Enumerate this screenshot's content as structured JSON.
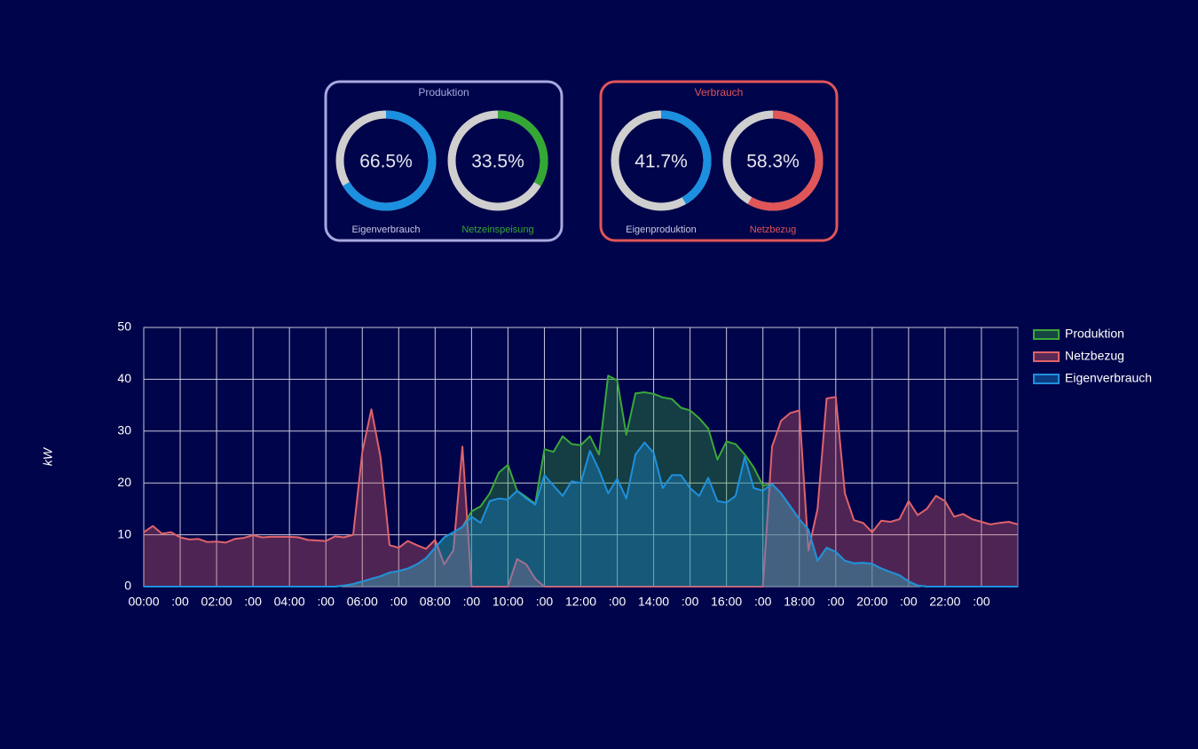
{
  "panels": [
    {
      "title": "Produktion",
      "color": "#a7a9e0",
      "gauges": [
        {
          "label": "Eigenverbrauch",
          "value": 66.5,
          "value_label": "66.5%",
          "color": "#1b8fe0",
          "label_color": "#c8c8e8"
        },
        {
          "label": "Netzeinspeisung",
          "value": 33.5,
          "value_label": "33.5%",
          "color": "#34a835",
          "label_color": "#34a835"
        }
      ]
    },
    {
      "title": "Verbrauch",
      "color": "#e05558",
      "gauges": [
        {
          "label": "Eigenproduktion",
          "value": 41.7,
          "value_label": "41.7%",
          "color": "#1b8fe0",
          "label_color": "#c8c8e8"
        },
        {
          "label": "Netzbezug",
          "value": 58.3,
          "value_label": "58.3%",
          "color": "#e05558",
          "label_color": "#e05558"
        }
      ]
    }
  ],
  "chart_data": {
    "type": "area",
    "y_label": "kW",
    "x": [
      0,
      0.25,
      0.5,
      0.75,
      1,
      1.25,
      1.5,
      1.75,
      2,
      2.25,
      2.5,
      2.75,
      3,
      3.25,
      3.5,
      3.75,
      4,
      4.25,
      4.5,
      4.75,
      5,
      5.25,
      5.5,
      5.75,
      6,
      6.25,
      6.5,
      6.75,
      7,
      7.25,
      7.5,
      7.75,
      8,
      8.25,
      8.5,
      8.75,
      9,
      9.25,
      9.5,
      9.75,
      10,
      10.25,
      10.5,
      10.75,
      11,
      11.25,
      11.5,
      11.75,
      12,
      12.25,
      12.5,
      12.75,
      13,
      13.25,
      13.5,
      13.75,
      14,
      14.25,
      14.5,
      14.75,
      15,
      15.25,
      15.5,
      15.75,
      16,
      16.25,
      16.5,
      16.75,
      17,
      17.25,
      17.5,
      17.75,
      18,
      18.25,
      18.5,
      18.75,
      19,
      19.25,
      19.5,
      19.75,
      20,
      20.25,
      20.5,
      20.75,
      21,
      21.25,
      21.5,
      21.75,
      22,
      22.25,
      22.5,
      22.75,
      23,
      23.25,
      23.5,
      23.75,
      24
    ],
    "series": [
      {
        "name": "Produktion",
        "color": "#3aa83a",
        "values": [
          0,
          0,
          0,
          0,
          0,
          0,
          0,
          0,
          0,
          0,
          0,
          0,
          0,
          0,
          0,
          0,
          0,
          0,
          0,
          0,
          0,
          0,
          0.2,
          0.5,
          1,
          1.5,
          2,
          2.7,
          3,
          3.5,
          4.3,
          5.5,
          7.5,
          9.5,
          10.5,
          11.5,
          14.5,
          15.5,
          18,
          22,
          23.5,
          18.5,
          17.3,
          16,
          26.5,
          26,
          29,
          27.5,
          27.3,
          29,
          25.5,
          40.7,
          39.8,
          29.3,
          37.3,
          37.5,
          37.2,
          36.5,
          36.2,
          34.5,
          34,
          32.5,
          30.5,
          24.5,
          28,
          27.5,
          25.5,
          23,
          19.5,
          19.8,
          18,
          15.5,
          13,
          11,
          5,
          7.5,
          6.7,
          5,
          4.5,
          4.6,
          4.4,
          3.5,
          2.8,
          2.2,
          1,
          0.2,
          0,
          0,
          0,
          0,
          0,
          0,
          0,
          0,
          0,
          0,
          0
        ]
      },
      {
        "name": "Netzbezug",
        "color": "#e0626a",
        "values": [
          10.5,
          11.7,
          10.2,
          10.5,
          9.5,
          9.1,
          9.2,
          8.6,
          8.7,
          8.5,
          9.2,
          9.4,
          9.9,
          9.5,
          9.6,
          9.6,
          9.6,
          9.5,
          9.0,
          8.9,
          8.8,
          9.7,
          9.5,
          10,
          26,
          34.2,
          25,
          8,
          7.5,
          8.8,
          8,
          7.3,
          9,
          4.3,
          7,
          27,
          0,
          0,
          0,
          0,
          0,
          5.3,
          4.3,
          1.5,
          0,
          0,
          0,
          0,
          0,
          0,
          0,
          0,
          0,
          0,
          0,
          0,
          0,
          0,
          0,
          0,
          0,
          0,
          0,
          0,
          0,
          0,
          0,
          0,
          0,
          27,
          32,
          33.5,
          34,
          7,
          15,
          36.3,
          36.6,
          18,
          12.8,
          12.3,
          10.5,
          12.7,
          12.5,
          13,
          16.5,
          13.8,
          15,
          17.5,
          16.5,
          13.5,
          14,
          13,
          12.5,
          12,
          12.3,
          12.5,
          12
        ]
      },
      {
        "name": "Eigenverbrauch",
        "color": "#1e90dc",
        "values": [
          0,
          0,
          0,
          0,
          0,
          0,
          0,
          0,
          0,
          0,
          0,
          0,
          0,
          0,
          0,
          0,
          0,
          0,
          0,
          0,
          0,
          0,
          0.2,
          0.5,
          1,
          1.5,
          2,
          2.7,
          3,
          3.5,
          4.3,
          5.5,
          7.5,
          9.5,
          10.5,
          11.5,
          13.5,
          12.3,
          16.5,
          17,
          16.8,
          18.5,
          17,
          15.8,
          21.5,
          19.5,
          17.5,
          20.3,
          20,
          26.2,
          22.5,
          18,
          20.8,
          17,
          25.5,
          27.8,
          25.8,
          19,
          21.5,
          21.5,
          19,
          17.5,
          21,
          16.5,
          16.2,
          17.5,
          25,
          19,
          18.5,
          19.8,
          18,
          15.5,
          13,
          11,
          5,
          7.5,
          6.7,
          5,
          4.5,
          4.6,
          4.4,
          3.5,
          2.8,
          2.2,
          1,
          0.2,
          0,
          0,
          0,
          0,
          0,
          0,
          0,
          0,
          0,
          0,
          0
        ]
      }
    ],
    "xlim": [
      0,
      24
    ],
    "xticks": [
      {
        "value": 0,
        "label": "00:00"
      },
      {
        "value": 1,
        "label": ":00"
      },
      {
        "value": 2,
        "label": "02:00"
      },
      {
        "value": 3,
        "label": ":00"
      },
      {
        "value": 4,
        "label": "04:00"
      },
      {
        "value": 5,
        "label": ":00"
      },
      {
        "value": 6,
        "label": "06:00"
      },
      {
        "value": 7,
        "label": ":00"
      },
      {
        "value": 8,
        "label": "08:00"
      },
      {
        "value": 9,
        "label": ":00"
      },
      {
        "value": 10,
        "label": "10:00"
      },
      {
        "value": 11,
        "label": ":00"
      },
      {
        "value": 12,
        "label": "12:00"
      },
      {
        "value": 13,
        "label": ":00"
      },
      {
        "value": 14,
        "label": "14:00"
      },
      {
        "value": 15,
        "label": ":00"
      },
      {
        "value": 16,
        "label": "16:00"
      },
      {
        "value": 17,
        "label": ":00"
      },
      {
        "value": 18,
        "label": "18:00"
      },
      {
        "value": 19,
        "label": ":00"
      },
      {
        "value": 20,
        "label": "20:00"
      },
      {
        "value": 21,
        "label": ":00"
      },
      {
        "value": 22,
        "label": "22:00"
      },
      {
        "value": 23,
        "label": ":00"
      }
    ],
    "ylim": [
      0,
      50
    ],
    "yticks": [
      0,
      10,
      20,
      30,
      40,
      50
    ],
    "grid": true,
    "legend": "right"
  }
}
